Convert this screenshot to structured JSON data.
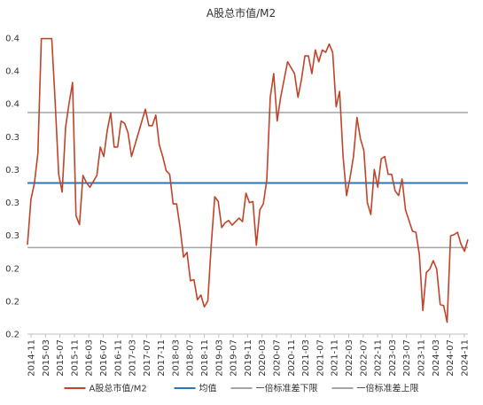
{
  "chart_data": {
    "type": "line",
    "title": "A股总市值/M2",
    "y_tick_labels": [
      "0.4",
      "0.4",
      "0.4",
      "0.3",
      "0.3",
      "0.3",
      "0.3",
      "0.2",
      "0.2",
      "0.2"
    ],
    "x_tick_labels": [
      "2014-11",
      "2015-03",
      "2015-07",
      "2015-11",
      "2016-03",
      "2016-07",
      "2016-11",
      "2017-03",
      "2017-07",
      "2017-11",
      "2018-03",
      "2018-07",
      "2018-11",
      "2019-03",
      "2019-07",
      "2019-11",
      "2020-03",
      "2020-07",
      "2020-11",
      "2021-03",
      "2021-07",
      "2021-11",
      "2022-03",
      "2022-07",
      "2022-11",
      "2023-03",
      "2023-07",
      "2023-11",
      "2024-03",
      "2024-07",
      "2024-11"
    ],
    "ylim": [
      0.2,
      0.45
    ],
    "grid": false,
    "legend_position": "bottom",
    "series": [
      {
        "name": "A股总市值/M2",
        "color": "#c0432a",
        "x_start": "2014-11",
        "x_end": "2025-01",
        "values": [
          0.2755,
          0.3137,
          0.3275,
          0.3525,
          0.4496,
          0.4496,
          0.4496,
          0.4496,
          0.395,
          0.335,
          0.32,
          0.375,
          0.395,
          0.4125,
          0.3,
          0.2925,
          0.334,
          0.328,
          0.324,
          0.329,
          0.334,
          0.358,
          0.35,
          0.372,
          0.387,
          0.358,
          0.358,
          0.38,
          0.378,
          0.37,
          0.35,
          0.36,
          0.37,
          0.38,
          0.39,
          0.376,
          0.376,
          0.385,
          0.36,
          0.35,
          0.338,
          0.335,
          0.31,
          0.31,
          0.29,
          0.265,
          0.269,
          0.245,
          0.246,
          0.229,
          0.233,
          0.223,
          0.228,
          0.276,
          0.316,
          0.312,
          0.29,
          0.294,
          0.296,
          0.292,
          0.295,
          0.298,
          0.295,
          0.319,
          0.311,
          0.312,
          0.275,
          0.305,
          0.31,
          0.33,
          0.4,
          0.42,
          0.38,
          0.4,
          0.415,
          0.43,
          0.425,
          0.42,
          0.4,
          0.415,
          0.435,
          0.435,
          0.42,
          0.44,
          0.43,
          0.44,
          0.438,
          0.445,
          0.438,
          0.392,
          0.405,
          0.35,
          0.317,
          0.332,
          0.35,
          0.383,
          0.365,
          0.355,
          0.311,
          0.301,
          0.339,
          0.324,
          0.348,
          0.35,
          0.335,
          0.335,
          0.321,
          0.317,
          0.331,
          0.305,
          0.296,
          0.287,
          0.286,
          0.267,
          0.22,
          0.252,
          0.255,
          0.262,
          0.255,
          0.225,
          0.224,
          0.21,
          0.283,
          0.284,
          0.286,
          0.276,
          0.27,
          0.28
        ]
      },
      {
        "name": "均值",
        "color": "#2e75b6",
        "value": 0.3276
      },
      {
        "name": "一倍标准差下限",
        "color": "#a5a5a5",
        "value": 0.2731
      },
      {
        "name": "一倍标准差上限",
        "color": "#a5a5a5",
        "value": 0.3871
      }
    ]
  }
}
